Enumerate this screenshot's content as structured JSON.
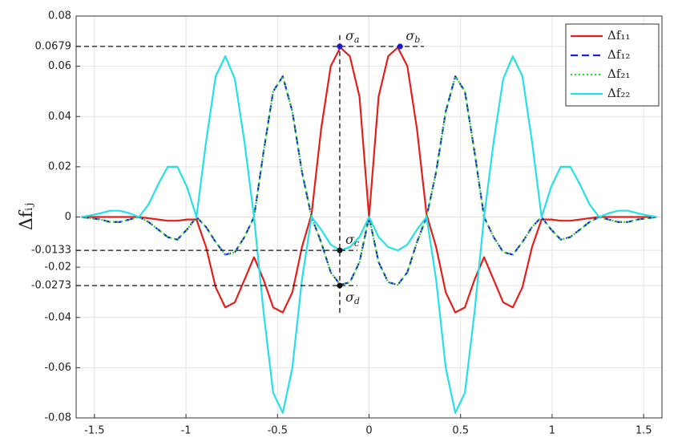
{
  "chart_data": {
    "type": "line",
    "y_label": "Δfᵢⱼ",
    "xlim": [
      -1.6,
      1.6
    ],
    "ylim": [
      -0.08,
      0.08
    ],
    "xticks": [
      -1.5,
      -1,
      -0.5,
      0,
      0.5,
      1,
      1.5
    ],
    "yticks": [
      -0.08,
      -0.06,
      -0.04,
      -0.0273,
      -0.02,
      -0.0133,
      0,
      0.02,
      0.04,
      0.06,
      0.0679,
      0.08
    ],
    "grid": true,
    "legend": "top-right",
    "x": [
      -1.5708,
      -1.5184,
      -1.4661,
      -1.4137,
      -1.3614,
      -1.309,
      -1.2566,
      -1.2043,
      -1.1519,
      -1.0996,
      -1.0472,
      -0.9948,
      -0.9425,
      -0.8901,
      -0.8378,
      -0.7854,
      -0.733,
      -0.6807,
      -0.6283,
      -0.576,
      -0.5236,
      -0.4712,
      -0.4189,
      -0.3665,
      -0.3142,
      -0.2618,
      -0.2094,
      -0.1571,
      -0.1047,
      -0.0524,
      0,
      0.0524,
      0.1047,
      0.1571,
      0.2094,
      0.2618,
      0.3142,
      0.3665,
      0.4189,
      0.4712,
      0.5236,
      0.576,
      0.6283,
      0.6807,
      0.733,
      0.7854,
      0.8378,
      0.8901,
      0.9425,
      0.9948,
      1.0472,
      1.0996,
      1.1519,
      1.2043,
      1.2566,
      1.309,
      1.3614,
      1.4137,
      1.4661,
      1.5184,
      1.5708
    ],
    "series": [
      {
        "name": "Δf₁₁",
        "color": "#e41f1a",
        "dash": "solid",
        "values": [
          0,
          0,
          0,
          0,
          0,
          0,
          0,
          -0.0005,
          -0.001,
          -0.0015,
          -0.0015,
          -0.001,
          -0.001,
          -0.012,
          -0.028,
          -0.036,
          -0.034,
          -0.025,
          -0.016,
          -0.025,
          -0.036,
          -0.038,
          -0.03,
          -0.012,
          0.001,
          0.035,
          0.06,
          0.0675,
          0.064,
          0.048,
          0,
          0.048,
          0.064,
          0.0675,
          0.06,
          0.035,
          0.001,
          -0.012,
          -0.03,
          -0.038,
          -0.036,
          -0.025,
          -0.016,
          -0.025,
          -0.034,
          -0.036,
          -0.028,
          -0.012,
          -0.001,
          -0.001,
          -0.0015,
          -0.0015,
          -0.001,
          -0.0005,
          0,
          0,
          0,
          0,
          0,
          0,
          0
        ]
      },
      {
        "name": "Δf₁₂",
        "color": "#1f1fe8",
        "dash": "dashed",
        "values": [
          0,
          -0.0005,
          -0.001,
          -0.002,
          -0.002,
          -0.001,
          0,
          -0.002,
          -0.005,
          -0.008,
          -0.009,
          -0.005,
          0,
          -0.004,
          -0.01,
          -0.015,
          -0.014,
          -0.008,
          0,
          0.026,
          0.05,
          0.056,
          0.042,
          0.018,
          0,
          -0.01,
          -0.022,
          -0.027,
          -0.026,
          -0.018,
          0,
          -0.018,
          -0.026,
          -0.027,
          -0.022,
          -0.01,
          0,
          0.018,
          0.042,
          0.056,
          0.05,
          0.026,
          0,
          -0.008,
          -0.014,
          -0.015,
          -0.01,
          -0.004,
          0,
          -0.005,
          -0.009,
          -0.008,
          -0.005,
          -0.002,
          0,
          -0.001,
          -0.002,
          -0.002,
          -0.001,
          -0.0005,
          0
        ]
      },
      {
        "name": "Δf₂₁",
        "color": "#2ad82a",
        "dash": "dotted",
        "values": [
          0,
          -0.0005,
          -0.001,
          -0.002,
          -0.002,
          -0.001,
          0,
          -0.002,
          -0.005,
          -0.008,
          -0.009,
          -0.005,
          0,
          -0.004,
          -0.01,
          -0.015,
          -0.014,
          -0.008,
          0,
          0.026,
          0.05,
          0.056,
          0.042,
          0.018,
          0,
          -0.01,
          -0.022,
          -0.027,
          -0.026,
          -0.018,
          0,
          -0.018,
          -0.026,
          -0.027,
          -0.022,
          -0.01,
          0,
          0.018,
          0.042,
          0.056,
          0.05,
          0.026,
          0,
          -0.008,
          -0.014,
          -0.015,
          -0.01,
          -0.004,
          0,
          -0.005,
          -0.009,
          -0.008,
          -0.005,
          -0.002,
          0,
          -0.001,
          -0.002,
          -0.002,
          -0.001,
          -0.0005,
          0
        ]
      },
      {
        "name": "Δf₂₂",
        "color": "#26e0e6",
        "dash": "solid",
        "values": [
          0,
          0.0007,
          0.0015,
          0.0025,
          0.0025,
          0.0015,
          0,
          0.005,
          0.013,
          0.02,
          0.02,
          0.012,
          0,
          0.03,
          0.056,
          0.064,
          0.055,
          0.03,
          0,
          -0.038,
          -0.07,
          -0.078,
          -0.06,
          -0.025,
          0,
          -0.005,
          -0.011,
          -0.0133,
          -0.012,
          -0.008,
          0,
          -0.008,
          -0.012,
          -0.0133,
          -0.011,
          -0.005,
          0,
          -0.025,
          -0.06,
          -0.078,
          -0.07,
          -0.038,
          0,
          0.03,
          0.055,
          0.064,
          0.056,
          0.03,
          0,
          0.012,
          0.02,
          0.02,
          0.013,
          0.005,
          0,
          0.0015,
          0.0025,
          0.0025,
          0.0015,
          0.0007,
          0
        ]
      }
    ],
    "annotations": [
      {
        "symbol": "σ",
        "sub": "a",
        "x": -0.16,
        "y": 0.0679,
        "color": "#1a1ad0",
        "guide": "both"
      },
      {
        "symbol": "σ",
        "sub": "b",
        "x": 0.17,
        "y": 0.0679,
        "color": "#1a1ad0",
        "guide": "none"
      },
      {
        "symbol": "σ",
        "sub": "c",
        "x": -0.16,
        "y": -0.0133,
        "color": "#111111",
        "guide": "horizontal"
      },
      {
        "symbol": "σ",
        "sub": "d",
        "x": -0.16,
        "y": -0.0273,
        "color": "#111111",
        "guide": "horizontal"
      }
    ]
  }
}
